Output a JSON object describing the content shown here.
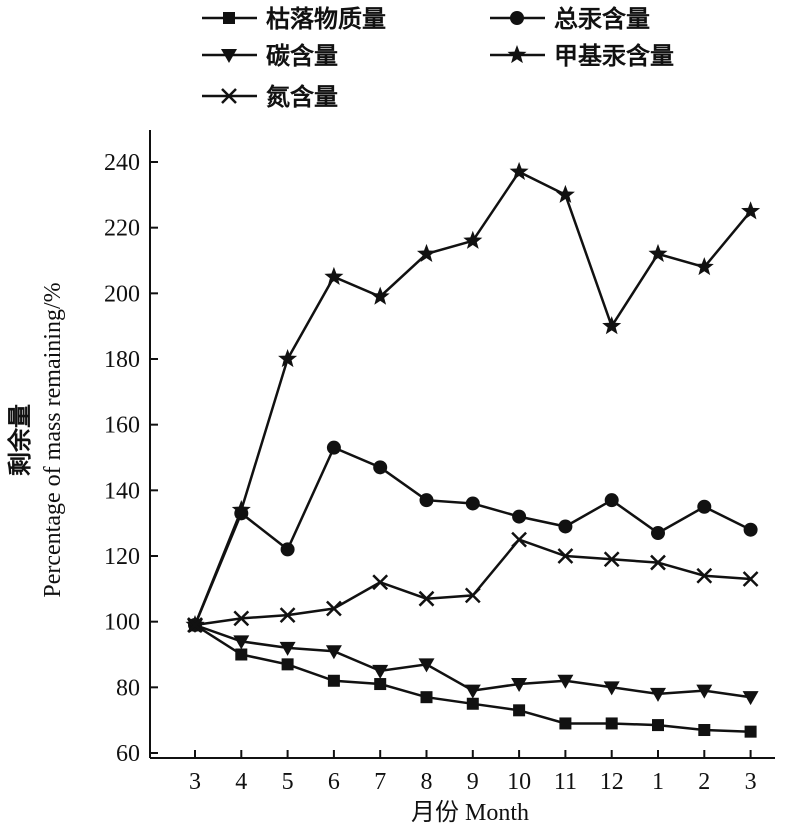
{
  "chart_data": {
    "type": "line",
    "xlabel": "月份 Month",
    "ylabel_cn": "剩余量",
    "ylabel_en": "Percentage of  mass remaining/%",
    "categories": [
      "3",
      "4",
      "5",
      "6",
      "7",
      "8",
      "9",
      "10",
      "11",
      "12",
      "1",
      "2",
      "3"
    ],
    "ylim": [
      60,
      240
    ],
    "yticks": [
      60,
      80,
      100,
      120,
      140,
      160,
      180,
      200,
      220,
      240
    ],
    "grid": false,
    "legend_position": "top",
    "series": [
      {
        "name": "枯落物质量",
        "marker": "square",
        "values": [
          99,
          90,
          87,
          82,
          81,
          77,
          75,
          73,
          69,
          69,
          68.5,
          67,
          66.5
        ]
      },
      {
        "name": "总汞含量",
        "marker": "circle",
        "values": [
          99,
          133,
          122,
          153,
          147,
          137,
          136,
          132,
          129,
          137,
          127,
          135,
          128
        ]
      },
      {
        "name": "碳含量",
        "marker": "triangle-down",
        "values": [
          99,
          94,
          92,
          91,
          85,
          87,
          79,
          81,
          82,
          80,
          78,
          79,
          77
        ]
      },
      {
        "name": "甲基汞含量",
        "marker": "star",
        "values": [
          99,
          134,
          180,
          205,
          199,
          212,
          216,
          237,
          230,
          190,
          212,
          208,
          225
        ]
      },
      {
        "name": "氮含量",
        "marker": "x",
        "values": [
          99,
          101,
          102,
          104,
          112,
          107,
          108,
          125,
          120,
          119,
          118,
          114,
          113
        ]
      }
    ]
  }
}
